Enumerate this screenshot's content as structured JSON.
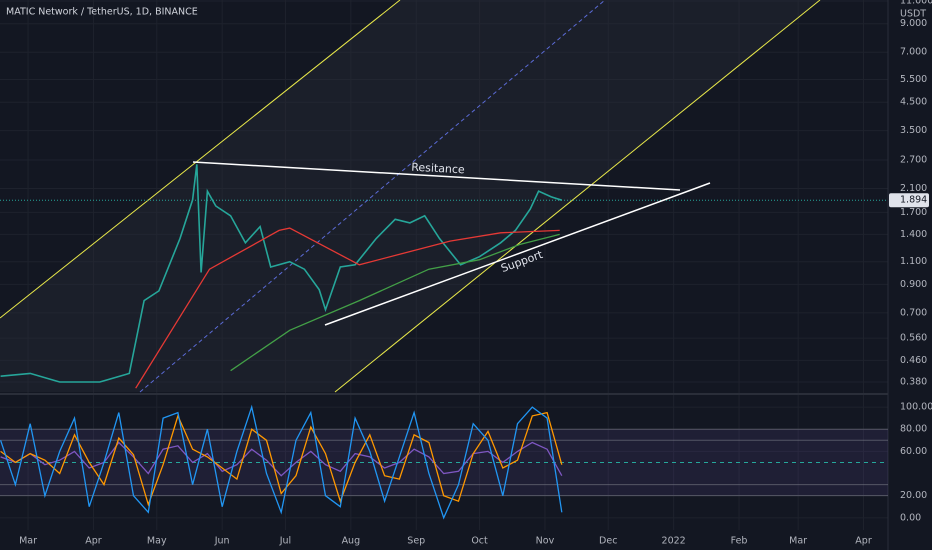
{
  "chart_data": [
    {
      "type": "line",
      "title": "MATIC Network / TetherUS, 1D, BINANCE",
      "unit": "USDT",
      "log_scale": true,
      "xlim": [
        -13.3,
        407.6
      ],
      "xticks": [
        {
          "value": 0,
          "label": "Mar"
        },
        {
          "value": 31,
          "label": "Apr"
        },
        {
          "value": 61,
          "label": "May"
        },
        {
          "value": 92,
          "label": "Jun"
        },
        {
          "value": 122,
          "label": "Jul"
        },
        {
          "value": 153,
          "label": "Aug"
        },
        {
          "value": 184,
          "label": "Sep"
        },
        {
          "value": 214,
          "label": "Oct"
        },
        {
          "value": 245,
          "label": "Nov"
        },
        {
          "value": 275,
          "label": "Dec"
        },
        {
          "value": 306,
          "label": "2022"
        },
        {
          "value": 337,
          "label": "Feb"
        },
        {
          "value": 365,
          "label": "Mar"
        },
        {
          "value": 396,
          "label": "Apr"
        }
      ],
      "ylim": [
        0.348,
        11.1
      ],
      "yticks": [
        {
          "value": 11,
          "label": "11.000"
        },
        {
          "value": 9,
          "label": "9.000"
        },
        {
          "value": 7,
          "label": "7.000"
        },
        {
          "value": 5.5,
          "label": "5.500"
        },
        {
          "value": 4.5,
          "label": "4.500"
        },
        {
          "value": 3.5,
          "label": "3.500"
        },
        {
          "value": 2.7,
          "label": "2.700"
        },
        {
          "value": 2.1,
          "label": "2.100"
        },
        {
          "value": 1.7,
          "label": "1.700"
        },
        {
          "value": 1.4,
          "label": "1.400"
        },
        {
          "value": 1.1,
          "label": "1.100"
        },
        {
          "value": 0.9,
          "label": "0.900"
        },
        {
          "value": 0.7,
          "label": "0.700"
        },
        {
          "value": 0.56,
          "label": "0.560"
        },
        {
          "value": 0.46,
          "label": "0.460"
        },
        {
          "value": 0.38,
          "label": "0.380"
        }
      ],
      "last_value": 1.894,
      "annotations": [
        "Resitance",
        "Support"
      ],
      "series": [
        {
          "color": "#26a69a",
          "x": [
            -13,
            1,
            15,
            34,
            48,
            55,
            62,
            72,
            78,
            80,
            82,
            85,
            89,
            96,
            103,
            110,
            115,
            124,
            131,
            138,
            141,
            148,
            155,
            165,
            174,
            181,
            188,
            195,
            205,
            214,
            224,
            231,
            238,
            242,
            248,
            253
          ],
          "values": [
            0.4,
            0.41,
            0.38,
            0.38,
            0.41,
            0.78,
            0.85,
            1.35,
            1.9,
            2.6,
            1.0,
            2.05,
            1.8,
            1.65,
            1.3,
            1.5,
            1.05,
            1.1,
            1.03,
            0.86,
            0.72,
            1.05,
            1.07,
            1.35,
            1.6,
            1.55,
            1.65,
            1.35,
            1.07,
            1.15,
            1.3,
            1.45,
            1.75,
            2.05,
            1.95,
            1.894
          ]
        },
        {
          "color": "#e53935",
          "x": [
            51,
            86,
            119,
            124,
            157,
            200,
            224,
            252
          ],
          "values": [
            0.36,
            1.03,
            1.45,
            1.48,
            1.07,
            1.32,
            1.42,
            1.45
          ]
        },
        {
          "color": "#43a047",
          "x": [
            96,
            124,
            157,
            190,
            214,
            233,
            252
          ],
          "values": [
            0.42,
            0.6,
            0.78,
            1.03,
            1.12,
            1.28,
            1.4
          ]
        }
      ]
    },
    {
      "type": "line",
      "xlim": [
        -13.3,
        407.6
      ],
      "ylim": [
        -11,
        110
      ],
      "yticks": [
        {
          "value": 100,
          "label": "100.00"
        },
        {
          "value": 80,
          "label": "80.00"
        },
        {
          "value": 60,
          "label": "60.00"
        },
        {
          "value": 20,
          "label": "20.00"
        },
        {
          "value": 0,
          "label": "0.00"
        }
      ],
      "levels": [
        80,
        70,
        30,
        20
      ],
      "midline": 50,
      "x": [
        -13,
        -6,
        1,
        8,
        15,
        22,
        29,
        36,
        43,
        50,
        57,
        64,
        71,
        78,
        85,
        92,
        99,
        106,
        113,
        120,
        127,
        134,
        141,
        148,
        155,
        162,
        169,
        176,
        183,
        190,
        197,
        204,
        211,
        218,
        225,
        232,
        239,
        246,
        253
      ],
      "series": [
        {
          "color": "#7e57c2",
          "values": [
            55,
            50,
            58,
            48,
            52,
            60,
            45,
            50,
            68,
            55,
            40,
            62,
            65,
            50,
            58,
            42,
            48,
            62,
            52,
            38,
            50,
            60,
            48,
            42,
            58,
            55,
            45,
            50,
            62,
            55,
            40,
            42,
            58,
            60,
            50,
            60,
            68,
            62,
            38
          ]
        },
        {
          "color": "#ff9800",
          "values": [
            60,
            50,
            58,
            52,
            40,
            75,
            50,
            30,
            72,
            57,
            12,
            48,
            92,
            62,
            55,
            45,
            35,
            80,
            70,
            22,
            38,
            82,
            58,
            15,
            50,
            75,
            38,
            35,
            75,
            68,
            20,
            15,
            58,
            78,
            45,
            52,
            92,
            95,
            48
          ]
        },
        {
          "color": "#2196f3",
          "values": [
            70,
            30,
            85,
            20,
            60,
            90,
            10,
            50,
            95,
            20,
            5,
            90,
            95,
            30,
            80,
            10,
            60,
            100,
            40,
            5,
            70,
            95,
            20,
            10,
            90,
            60,
            15,
            55,
            95,
            40,
            0,
            30,
            85,
            70,
            20,
            85,
            100,
            90,
            5
          ]
        }
      ]
    }
  ]
}
